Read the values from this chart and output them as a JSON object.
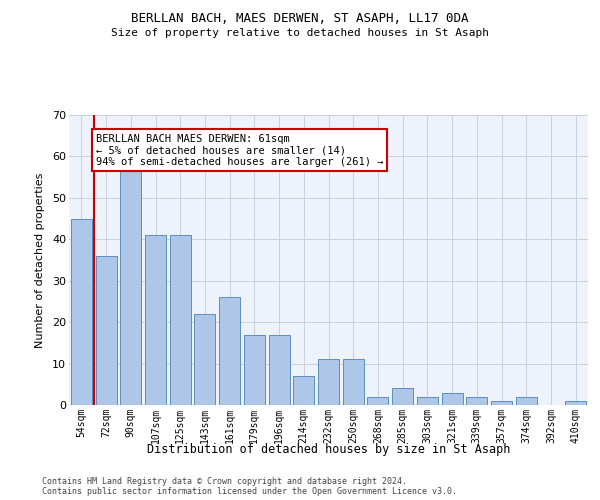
{
  "title1": "BERLLAN BACH, MAES DERWEN, ST ASAPH, LL17 0DA",
  "title2": "Size of property relative to detached houses in St Asaph",
  "xlabel": "Distribution of detached houses by size in St Asaph",
  "ylabel": "Number of detached properties",
  "categories": [
    "54sqm",
    "72sqm",
    "90sqm",
    "107sqm",
    "125sqm",
    "143sqm",
    "161sqm",
    "179sqm",
    "196sqm",
    "214sqm",
    "232sqm",
    "250sqm",
    "268sqm",
    "285sqm",
    "303sqm",
    "321sqm",
    "339sqm",
    "357sqm",
    "374sqm",
    "392sqm",
    "410sqm"
  ],
  "values": [
    45,
    36,
    58,
    41,
    41,
    22,
    26,
    17,
    17,
    7,
    11,
    11,
    2,
    4,
    2,
    3,
    2,
    1,
    2,
    0,
    1
  ],
  "bar_color": "#aec6e8",
  "bar_edge_color": "#5a8fc0",
  "highlight_line_color": "#cc0000",
  "annotation_text": "BERLLAN BACH MAES DERWEN: 61sqm\n← 5% of detached houses are smaller (14)\n94% of semi-detached houses are larger (261) →",
  "annotation_box_color": "#ffffff",
  "annotation_box_edge_color": "#cc0000",
  "ylim": [
    0,
    70
  ],
  "yticks": [
    0,
    10,
    20,
    30,
    40,
    50,
    60,
    70
  ],
  "footer1": "Contains HM Land Registry data © Crown copyright and database right 2024.",
  "footer2": "Contains public sector information licensed under the Open Government Licence v3.0.",
  "bg_color": "#eef2fa",
  "grid_color": "#c8d0e0"
}
